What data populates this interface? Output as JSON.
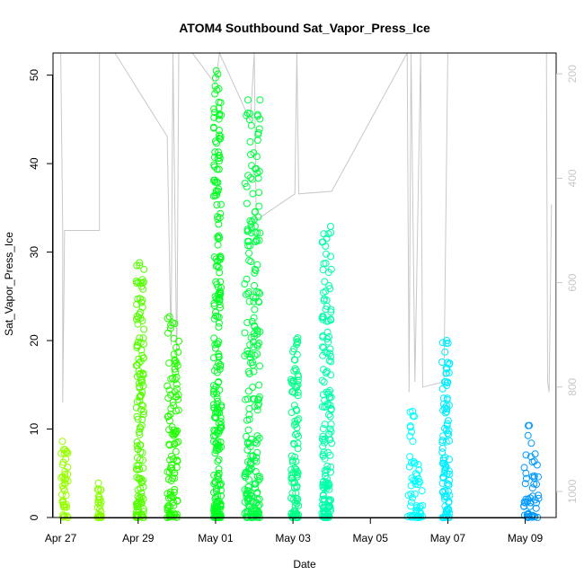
{
  "chart_data": {
    "type": "scatter",
    "title": "ATOM4 Southbound Sat_Vapor_Press_Ice",
    "xlabel": "Date",
    "ylabel": "Sat_Vapor_Press_Ice",
    "xlim": [
      -0.2,
      12.8
    ],
    "ylim": [
      0,
      52.5
    ],
    "x_tick_values": [
      0,
      2,
      4,
      6,
      8,
      10,
      12
    ],
    "x_tick_labels": [
      "Apr 27",
      "Apr 29",
      "May 01",
      "May 03",
      "May 05",
      "May 07",
      "May 09"
    ],
    "y_tick_values": [
      0,
      10,
      20,
      30,
      40,
      50
    ],
    "y_tick_labels": [
      "0",
      "10",
      "20",
      "30",
      "40",
      "50"
    ],
    "right_axis": {
      "description": "secondary axis (grey), reversed",
      "ylim": [
        1050,
        160
      ],
      "tick_values": [
        200,
        400,
        600,
        800,
        1000
      ],
      "tick_labels": [
        "200",
        "400",
        "600",
        "800",
        "1000"
      ],
      "color": "#c8c8c8"
    },
    "grid": false,
    "legend": "none",
    "marker": "open circle",
    "flights": [
      {
        "x_start": 0.0,
        "x_end": 0.2,
        "y_max": 8.6,
        "color": "#99ff00"
      },
      {
        "x_start": 0.95,
        "x_end": 1.05,
        "y_max": 3.9,
        "color": "#88ff00"
      },
      {
        "x_start": 1.95,
        "x_end": 2.15,
        "y_max": 28.8,
        "color": "#55ff00"
      },
      {
        "x_start": 2.75,
        "x_end": 3.05,
        "y_max": 22.7,
        "color": "#22ff00"
      },
      {
        "x_start": 3.95,
        "x_end": 4.15,
        "y_max": 50.5,
        "color": "#00ff22"
      },
      {
        "x_start": 4.75,
        "x_end": 5.15,
        "y_max": 47.2,
        "color": "#00ff44"
      },
      {
        "x_start": 5.95,
        "x_end": 6.15,
        "y_max": 20.3,
        "color": "#00ff88"
      },
      {
        "x_start": 6.75,
        "x_end": 7.0,
        "y_max": 32.9,
        "color": "#00ffaa"
      },
      {
        "x_start": 8.95,
        "x_end": 9.35,
        "y_max": 12.0,
        "color": "#00ffff"
      },
      {
        "x_start": 9.85,
        "x_end": 10.05,
        "y_max": 20.0,
        "color": "#00eeff"
      },
      {
        "x_start": 11.95,
        "x_end": 12.35,
        "y_max": 10.4,
        "color": "#0099ff"
      }
    ],
    "secondary_trace": [
      {
        "x": 0.0,
        "y": 160
      },
      {
        "x": 0.05,
        "y": 500
      },
      {
        "x": 0.05,
        "y": 830
      },
      {
        "x": 0.1,
        "y": 500
      },
      {
        "x": 1.0,
        "y": 500
      },
      {
        "x": 1.0,
        "y": 160
      },
      {
        "x": 1.4,
        "y": 160
      },
      {
        "x": 2.75,
        "y": 320
      },
      {
        "x": 2.85,
        "y": 720
      },
      {
        "x": 2.9,
        "y": 160
      },
      {
        "x": 3.0,
        "y": 760
      },
      {
        "x": 3.05,
        "y": 160
      },
      {
        "x": 3.4,
        "y": 160
      },
      {
        "x": 4.0,
        "y": 220
      },
      {
        "x": 4.1,
        "y": 160
      },
      {
        "x": 4.9,
        "y": 290
      },
      {
        "x": 5.0,
        "y": 160
      },
      {
        "x": 5.05,
        "y": 480
      },
      {
        "x": 6.05,
        "y": 430
      },
      {
        "x": 6.1,
        "y": 160
      },
      {
        "x": 6.15,
        "y": 430
      },
      {
        "x": 7.0,
        "y": 425
      },
      {
        "x": 8.95,
        "y": 160
      },
      {
        "x": 9.0,
        "y": 810
      },
      {
        "x": 9.05,
        "y": 160
      },
      {
        "x": 9.15,
        "y": 790
      },
      {
        "x": 9.3,
        "y": 160
      },
      {
        "x": 9.35,
        "y": 800
      },
      {
        "x": 9.9,
        "y": 790
      },
      {
        "x": 10.0,
        "y": 160
      },
      {
        "x": 12.55,
        "y": 160
      },
      {
        "x": 12.58,
        "y": 790
      },
      {
        "x": 12.62,
        "y": 810
      },
      {
        "x": 12.68,
        "y": 450
      }
    ]
  }
}
